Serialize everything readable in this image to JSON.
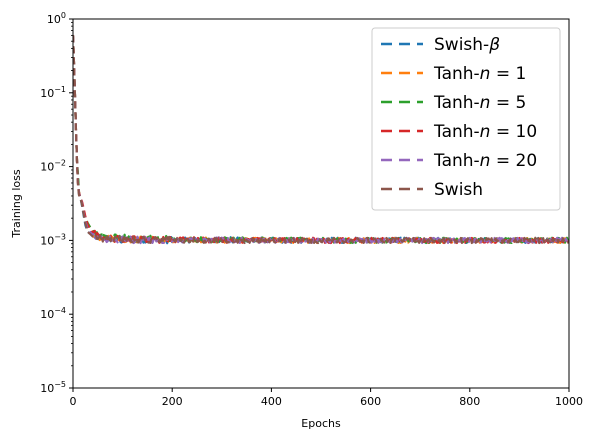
{
  "chart_data": {
    "type": "line",
    "xlabel": "Epochs",
    "ylabel": "Training loss",
    "xlim": [
      0,
      1000
    ],
    "ylim": [
      1e-05,
      1
    ],
    "yscale": "log",
    "xticks": [
      "0",
      "200",
      "400",
      "600",
      "800",
      "1000"
    ],
    "xtick_values": [
      0,
      200,
      400,
      600,
      800,
      1000
    ],
    "yticks": [
      "10^-5",
      "10^-4",
      "10^-3",
      "10^-2",
      "10^-1",
      "10^0"
    ],
    "ytick_exponents": [
      -5,
      -4,
      -3,
      -2,
      -1,
      0
    ],
    "grid": false,
    "legend_position": "top-right",
    "series": [
      {
        "name": "Swish-β",
        "color": "#1f77b4",
        "x": [
          0,
          2,
          4,
          6,
          8,
          10,
          12,
          14,
          16,
          18,
          20,
          25,
          30,
          40,
          50,
          60,
          80,
          100,
          150,
          200,
          300,
          400,
          500,
          600,
          700,
          800,
          900,
          1000
        ],
        "y": [
          0.6,
          0.25,
          0.09,
          0.03,
          0.012,
          0.006,
          0.0042,
          0.0038,
          0.0035,
          0.003,
          0.0025,
          0.0016,
          0.0013,
          0.00115,
          0.0011,
          0.00105,
          0.00105,
          0.00102,
          0.00103,
          0.00101,
          0.00102,
          0.00101,
          0.001,
          0.00101,
          0.001,
          0.001,
          0.001,
          0.001
        ]
      },
      {
        "name": "Tanh-n = 1",
        "color": "#ff7f0e",
        "x": [
          0,
          2,
          4,
          6,
          8,
          10,
          12,
          14,
          16,
          18,
          20,
          25,
          30,
          40,
          50,
          60,
          80,
          100,
          150,
          200,
          300,
          400,
          500,
          600,
          700,
          800,
          900,
          1000
        ],
        "y": [
          0.6,
          0.25,
          0.09,
          0.03,
          0.012,
          0.006,
          0.0045,
          0.004,
          0.0037,
          0.0033,
          0.0028,
          0.0019,
          0.0015,
          0.0012,
          0.00112,
          0.00108,
          0.00106,
          0.00103,
          0.00102,
          0.00101,
          0.00101,
          0.001,
          0.001,
          0.001,
          0.001,
          0.001,
          0.001,
          0.001
        ]
      },
      {
        "name": "Tanh-n = 5",
        "color": "#2ca02c",
        "x": [
          0,
          2,
          4,
          6,
          8,
          10,
          12,
          14,
          16,
          18,
          20,
          25,
          30,
          40,
          50,
          60,
          80,
          100,
          150,
          200,
          300,
          400,
          500,
          600,
          700,
          800,
          900,
          1000
        ],
        "y": [
          0.6,
          0.25,
          0.09,
          0.03,
          0.012,
          0.008,
          0.0045,
          0.004,
          0.0036,
          0.0032,
          0.0028,
          0.002,
          0.0017,
          0.0013,
          0.0012,
          0.00115,
          0.0011,
          0.00108,
          0.00105,
          0.00103,
          0.00102,
          0.00101,
          0.001,
          0.001,
          0.001,
          0.001,
          0.001,
          0.001
        ]
      },
      {
        "name": "Tanh-n = 10",
        "color": "#d62728",
        "x": [
          0,
          2,
          4,
          6,
          8,
          10,
          12,
          14,
          16,
          18,
          20,
          25,
          30,
          40,
          50,
          60,
          80,
          100,
          150,
          200,
          300,
          400,
          500,
          600,
          700,
          800,
          900,
          1000
        ],
        "y": [
          0.6,
          0.25,
          0.09,
          0.03,
          0.012,
          0.006,
          0.0045,
          0.004,
          0.0037,
          0.0034,
          0.003,
          0.0021,
          0.0016,
          0.0013,
          0.00115,
          0.0011,
          0.00106,
          0.00104,
          0.00103,
          0.00102,
          0.00101,
          0.001,
          0.001,
          0.001,
          0.001,
          0.001,
          0.001,
          0.001
        ]
      },
      {
        "name": "Tanh-n = 20",
        "color": "#9467bd",
        "x": [
          0,
          2,
          4,
          6,
          8,
          10,
          12,
          14,
          16,
          18,
          20,
          25,
          30,
          40,
          50,
          60,
          80,
          100,
          150,
          200,
          300,
          400,
          500,
          600,
          700,
          800,
          900,
          1000
        ],
        "y": [
          0.6,
          0.25,
          0.09,
          0.03,
          0.012,
          0.006,
          0.0043,
          0.0039,
          0.0036,
          0.0032,
          0.0027,
          0.0018,
          0.0014,
          0.00118,
          0.0011,
          0.00106,
          0.00104,
          0.00102,
          0.00102,
          0.00101,
          0.00101,
          0.001,
          0.001,
          0.001,
          0.001,
          0.001,
          0.001,
          0.001
        ]
      },
      {
        "name": "Swish",
        "color": "#8c564b",
        "x": [
          0,
          2,
          4,
          6,
          8,
          10,
          12,
          14,
          16,
          18,
          20,
          25,
          30,
          40,
          50,
          60,
          80,
          100,
          150,
          200,
          300,
          400,
          500,
          600,
          700,
          800,
          900,
          1000
        ],
        "y": [
          0.6,
          0.25,
          0.09,
          0.03,
          0.012,
          0.0055,
          0.0041,
          0.0038,
          0.0035,
          0.0031,
          0.0026,
          0.0017,
          0.0013,
          0.00113,
          0.00108,
          0.00105,
          0.00104,
          0.00102,
          0.00101,
          0.00101,
          0.001,
          0.001,
          0.001,
          0.001,
          0.001,
          0.001,
          0.001,
          0.001
        ]
      }
    ]
  }
}
